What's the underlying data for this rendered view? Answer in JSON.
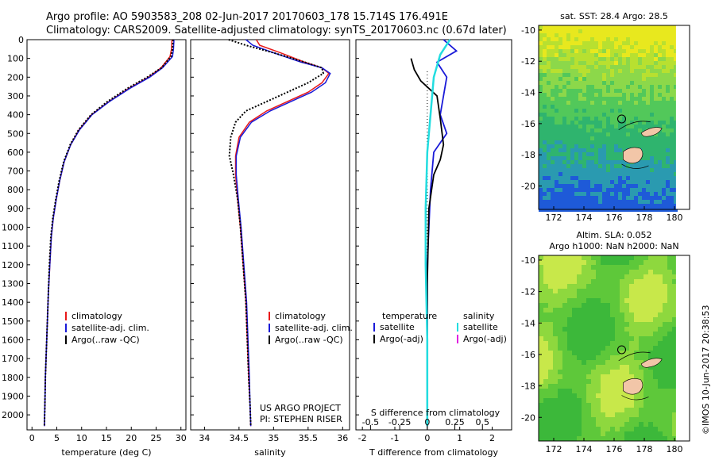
{
  "header": {
    "line1": "Argo profile: AO 5903583_208 02-Jun-2017 20170603_178 15.714S 176.491E",
    "line2": "Climatology: CARS2009. Satellite-adjusted climatology: synTS_20170603.nc (0.67d later)"
  },
  "colors": {
    "climatology": "#e8191a",
    "satellite": "#1a1ad8",
    "argo": "#000000",
    "sat_salinity": "#22dde0",
    "argo_adj_salinity": "#e020e0"
  },
  "chart_data": [
    {
      "type": "line",
      "id": "temperature",
      "xlabel": "temperature (deg C)",
      "ylabel": "",
      "xlim": [
        -1,
        31
      ],
      "ylim": [
        2080,
        0
      ],
      "xticks": [
        0,
        5,
        10,
        15,
        20,
        25,
        30
      ],
      "yticks": [
        0,
        100,
        200,
        300,
        400,
        500,
        600,
        700,
        800,
        900,
        1000,
        1100,
        1200,
        1300,
        1400,
        1500,
        1600,
        1700,
        1800,
        1900,
        2000
      ],
      "legend": [
        "climatology",
        "satellite-adj. clim.",
        "Argo(..raw -QC)"
      ],
      "series": [
        {
          "name": "climatology",
          "style": "solid",
          "x": [
            28.2,
            28.1,
            27.8,
            26,
            23.5,
            19.5,
            15.5,
            12,
            9.5,
            7.8,
            6.5,
            5.6,
            4.9,
            4.3,
            3.9,
            3.6,
            3.3,
            3.1,
            2.9,
            2.7,
            2.6,
            2.5
          ],
          "y": [
            0,
            50,
            90,
            150,
            200,
            260,
            330,
            400,
            480,
            560,
            650,
            750,
            850,
            950,
            1050,
            1200,
            1350,
            1500,
            1650,
            1800,
            1950,
            2060
          ]
        },
        {
          "name": "satellite-adj. clim.",
          "style": "solid",
          "x": [
            28.6,
            28.5,
            28.3,
            26.3,
            23.7,
            19.7,
            15.6,
            12.1,
            9.6,
            7.8,
            6.5,
            5.6,
            4.9,
            4.3,
            3.9,
            3.6,
            3.3,
            3.1,
            2.9,
            2.7,
            2.6,
            2.5
          ],
          "y": [
            0,
            50,
            90,
            150,
            200,
            260,
            330,
            400,
            480,
            560,
            650,
            750,
            850,
            950,
            1050,
            1200,
            1350,
            1500,
            1650,
            1800,
            1950,
            2060
          ]
        },
        {
          "name": "Argo(..raw -QC)",
          "style": "dotted",
          "x": [
            28.4,
            28.3,
            28.0,
            26.1,
            23.2,
            19.2,
            15.2,
            11.9,
            9.4,
            7.7,
            6.4,
            5.5,
            4.8,
            4.2,
            3.8,
            3.5,
            3.3,
            3.1,
            2.9,
            2.7,
            2.6,
            2.5
          ],
          "y": [
            0,
            50,
            90,
            150,
            200,
            260,
            330,
            400,
            480,
            560,
            650,
            750,
            850,
            950,
            1050,
            1200,
            1350,
            1500,
            1650,
            1800,
            1950,
            2060
          ]
        }
      ]
    },
    {
      "type": "line",
      "id": "salinity",
      "xlabel": "salinity",
      "ylabel": "",
      "xlim": [
        33.8,
        36.1
      ],
      "ylim": [
        2080,
        0
      ],
      "xticks": [
        34,
        34.5,
        35,
        35.5,
        36
      ],
      "legend": [
        "climatology",
        "satellite-adj. clim.",
        "Argo(..raw -QC)"
      ],
      "annotations": [
        "US ARGO PROJECT",
        "PI: STEPHEN RISER"
      ],
      "series": [
        {
          "name": "climatology",
          "style": "solid",
          "x": [
            34.75,
            34.8,
            35.1,
            35.45,
            35.7,
            35.8,
            35.7,
            35.5,
            35.2,
            34.9,
            34.65,
            34.5,
            34.45,
            34.45,
            34.48,
            34.52,
            34.56,
            34.6,
            34.62,
            34.64,
            34.66,
            34.67
          ],
          "y": [
            0,
            30,
            70,
            120,
            150,
            180,
            230,
            280,
            330,
            380,
            440,
            520,
            620,
            720,
            850,
            1000,
            1200,
            1400,
            1600,
            1800,
            1950,
            2060
          ]
        },
        {
          "name": "satellite-adj. clim.",
          "style": "solid",
          "x": [
            34.6,
            34.7,
            35.0,
            35.4,
            35.7,
            35.82,
            35.75,
            35.55,
            35.25,
            34.95,
            34.68,
            34.52,
            34.46,
            34.46,
            34.49,
            34.53,
            34.57,
            34.61,
            34.63,
            34.65,
            34.66,
            34.67
          ],
          "y": [
            0,
            30,
            70,
            120,
            150,
            180,
            230,
            280,
            330,
            380,
            440,
            520,
            620,
            720,
            850,
            1000,
            1200,
            1400,
            1600,
            1800,
            1950,
            2060
          ]
        },
        {
          "name": "Argo(..raw -QC)",
          "style": "dotted",
          "x": [
            34.35,
            34.6,
            35.0,
            35.45,
            35.7,
            35.72,
            35.5,
            35.2,
            34.9,
            34.6,
            34.45,
            34.38,
            34.36,
            34.42,
            34.48,
            34.52,
            34.56,
            34.6,
            34.62,
            34.64,
            34.66,
            34.67
          ],
          "y": [
            0,
            30,
            70,
            120,
            150,
            180,
            230,
            280,
            330,
            380,
            440,
            520,
            620,
            720,
            850,
            1000,
            1200,
            1400,
            1600,
            1800,
            1950,
            2060
          ]
        }
      ]
    },
    {
      "type": "line",
      "id": "differences",
      "xlabel": "T difference from climatology",
      "xlabel_top": "S difference from climatology",
      "xlim": [
        -2.2,
        2.6
      ],
      "ylim": [
        2080,
        0
      ],
      "xticks": [
        -2,
        -1,
        0,
        1,
        2
      ],
      "top_ticks": [
        {
          "label": "-0.5",
          "x": -1.75
        },
        {
          "label": "-0.25",
          "x": -0.85
        },
        {
          "label": "0",
          "x": 0
        },
        {
          "label": "0.25",
          "x": 0.85
        },
        {
          "label": "0.5",
          "x": 1.7
        }
      ],
      "legend_left_title": "temperature",
      "legend_right_title": "salinity",
      "legend": [
        "satellite",
        "Argo(-adj)",
        "satellite",
        "Argo(-adj)"
      ],
      "series": [
        {
          "name": "T satellite",
          "style": "solid",
          "x": [
            0.5,
            0.9,
            0.3,
            0.6,
            0.5,
            0.4,
            0.6,
            0.2,
            0.1,
            0.0,
            0.0,
            0.0
          ],
          "y": [
            0,
            60,
            120,
            200,
            300,
            400,
            500,
            600,
            800,
            1200,
            1600,
            2060
          ]
        },
        {
          "name": "T Argo(-adj)",
          "style": "solid",
          "x": [
            -0.5,
            -0.4,
            -0.2,
            0.3,
            0.4,
            0.5,
            0.4,
            0.2,
            0.05,
            0.0,
            0.0
          ],
          "y": [
            100,
            160,
            220,
            300,
            420,
            560,
            640,
            720,
            900,
            1300,
            2060
          ]
        },
        {
          "name": "S satellite",
          "style": "solid",
          "x": [
            0.7,
            0.4,
            0.2,
            0.1,
            0.0,
            -0.05,
            -0.05,
            0.0,
            0.0
          ],
          "y": [
            0,
            80,
            200,
            400,
            600,
            900,
            1200,
            1600,
            2060
          ]
        }
      ]
    },
    {
      "type": "heatmap",
      "id": "sst_map",
      "title": "sat. SST: 28.4 Argo: 28.5",
      "xlim": [
        171,
        181
      ],
      "ylim": [
        -21.5,
        -9.7
      ],
      "xticks": [
        172,
        174,
        176,
        178,
        180
      ],
      "yticks": [
        -10,
        -12,
        -14,
        -16,
        -18,
        -20
      ],
      "marker": {
        "lon": 176.5,
        "lat": -15.7
      }
    },
    {
      "type": "heatmap",
      "id": "sla_map",
      "title": "Altim. SLA: 0.052",
      "subtitle": "Argo h1000: NaN h2000: NaN",
      "xlim": [
        171,
        181
      ],
      "ylim": [
        -21.5,
        -9.7
      ],
      "xticks": [
        172,
        174,
        176,
        178,
        180
      ],
      "yticks": [
        -10,
        -12,
        -14,
        -16,
        -18,
        -20
      ],
      "marker": {
        "lon": 176.5,
        "lat": -15.7
      }
    }
  ],
  "footer": {
    "imos_stamp": "©IMOS 10-Jun-2017 20:38:53"
  }
}
